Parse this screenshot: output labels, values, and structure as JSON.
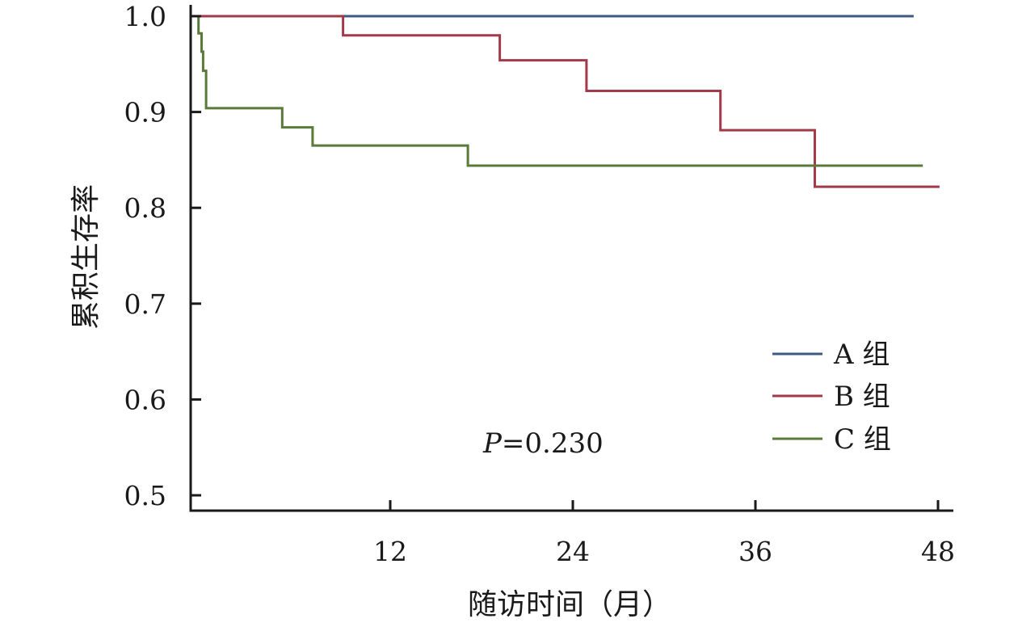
{
  "chart_data": {
    "type": "line",
    "step": true,
    "title": "",
    "xlabel": "随访时间（月）",
    "ylabel": "累积生存率",
    "xlim": [
      -2,
      48.5
    ],
    "ylim": [
      0.485,
      1.0
    ],
    "x_ticks": [
      12,
      24,
      36,
      48
    ],
    "x_tick_labels": [
      "12",
      "24",
      "36",
      "48"
    ],
    "y_ticks": [
      1.0,
      0.9,
      0.8,
      0.7,
      0.6,
      0.5
    ],
    "y_tick_labels": [
      "1.0",
      "0.9",
      "0.8",
      "0.7",
      "0.6",
      "0.5"
    ],
    "grid": false,
    "legend_position": "bottom-right",
    "annotation": {
      "italic": "P",
      "text": "=0.230"
    },
    "series": [
      {
        "name": "A 组",
        "color": "#3d5a80",
        "points": [
          [
            -1.1,
            1.0
          ],
          [
            46.4,
            1.0
          ]
        ]
      },
      {
        "name": "B 组",
        "color": "#a23a4a",
        "points": [
          [
            -1.1,
            1.0
          ],
          [
            8.9,
            1.0
          ],
          [
            8.9,
            0.98
          ],
          [
            19.2,
            0.98
          ],
          [
            19.2,
            0.954
          ],
          [
            24.9,
            0.954
          ],
          [
            24.9,
            0.922
          ],
          [
            33.7,
            0.922
          ],
          [
            33.7,
            0.881
          ],
          [
            39.9,
            0.881
          ],
          [
            39.9,
            0.822
          ],
          [
            48.1,
            0.822
          ]
        ]
      },
      {
        "name": "C 组",
        "color": "#5a7a3a",
        "points": [
          [
            -1.1,
            1.0
          ],
          [
            -0.6,
            1.0
          ],
          [
            -0.6,
            0.982
          ],
          [
            -0.4,
            0.982
          ],
          [
            -0.4,
            0.963
          ],
          [
            -0.3,
            0.963
          ],
          [
            -0.3,
            0.943
          ],
          [
            -0.1,
            0.943
          ],
          [
            -0.1,
            0.904
          ],
          [
            4.9,
            0.904
          ],
          [
            4.9,
            0.884
          ],
          [
            6.9,
            0.884
          ],
          [
            6.9,
            0.865
          ],
          [
            17.1,
            0.865
          ],
          [
            17.1,
            0.844
          ],
          [
            47.0,
            0.844
          ]
        ]
      }
    ]
  }
}
